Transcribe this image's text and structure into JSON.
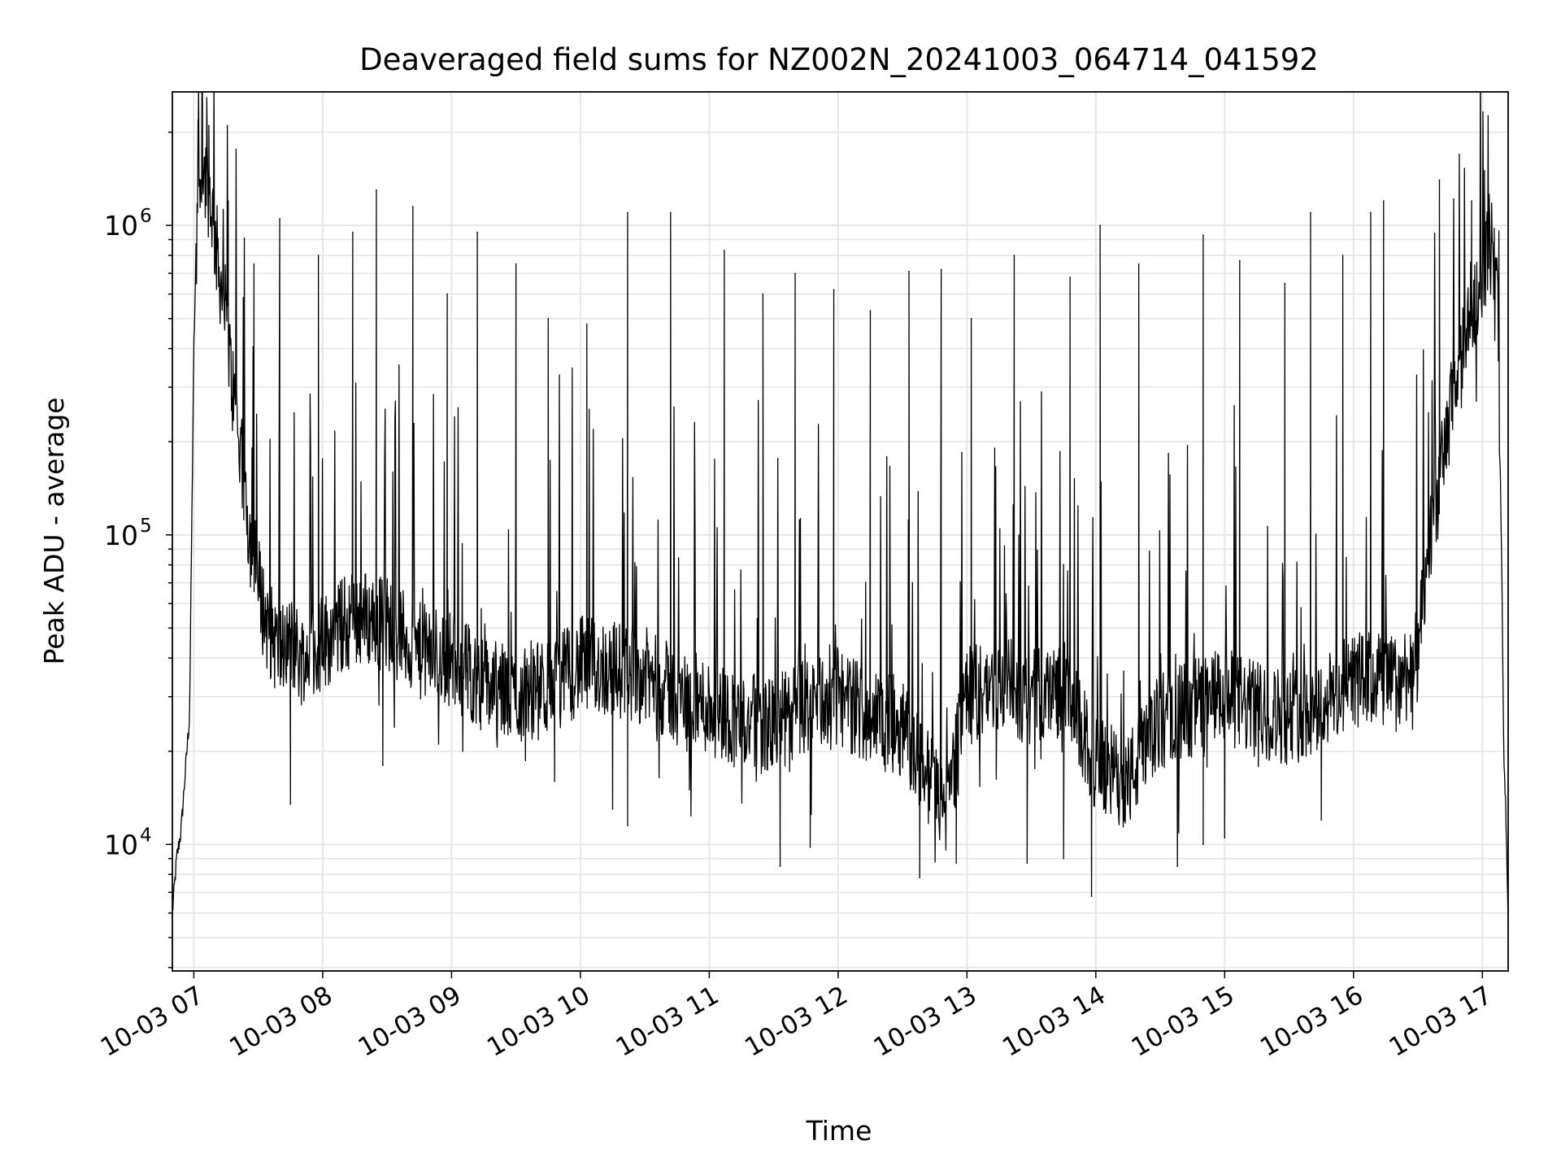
{
  "chart_data": {
    "type": "line",
    "title": "Deaveraged field sums for NZ002N_20241003_064714_041592",
    "xlabel": "Time",
    "ylabel": "Peak ADU - average",
    "x_range": [
      "10-03 06:50",
      "10-03 17:12"
    ],
    "y_scale": "log",
    "ylim": [
      3900,
      2700000
    ],
    "grid": true,
    "line_color": "#000000",
    "grid_color": "#e6e6e6",
    "x_ticks": [
      "10-03 07",
      "10-03 08",
      "10-03 09",
      "10-03 10",
      "10-03 11",
      "10-03 12",
      "10-03 13",
      "10-03 14",
      "10-03 15",
      "10-03 16",
      "10-03 17"
    ],
    "y_ticks": [
      {
        "value": 10000,
        "base": "10",
        "exp": "4"
      },
      {
        "value": 100000,
        "base": "10",
        "exp": "5"
      },
      {
        "value": 1000000,
        "base": "10",
        "exp": "6"
      }
    ],
    "series": [
      {
        "x": [
          "06:50",
          "06:52",
          "06:54",
          "06:56",
          "06:58",
          "07:00",
          "07:02",
          "07:04",
          "07:06",
          "07:08",
          "07:10",
          "07:12",
          "07:15",
          "07:18",
          "07:21",
          "07:24",
          "07:27",
          "07:30",
          "07:33",
          "07:36",
          "07:40",
          "07:45",
          "07:50",
          "08:00",
          "08:15",
          "08:30",
          "08:45",
          "09:00",
          "09:15",
          "09:30",
          "09:45",
          "10:00",
          "10:15",
          "10:30",
          "10:45",
          "11:00",
          "11:15",
          "11:30",
          "11:45",
          "12:00",
          "12:15",
          "12:30",
          "12:45",
          "12:50",
          "13:00",
          "13:15",
          "13:30",
          "13:45",
          "14:00",
          "14:15",
          "14:30",
          "14:45",
          "15:00",
          "15:15",
          "15:30",
          "15:45",
          "16:00",
          "16:10",
          "16:20",
          "16:30",
          "16:35",
          "16:40",
          "16:45",
          "16:50",
          "16:55",
          "17:00",
          "17:03",
          "17:05",
          "17:07",
          "17:09",
          "17:10",
          "17:11",
          "17:12"
        ],
        "y": [
          6000,
          9000,
          11000,
          17000,
          26000,
          400000,
          1400000,
          1500000,
          1400000,
          1200000,
          900000,
          700000,
          500000,
          300000,
          200000,
          130000,
          90000,
          70000,
          55000,
          48000,
          42000,
          45000,
          40000,
          45000,
          55000,
          52000,
          42000,
          40000,
          33000,
          30000,
          32000,
          38000,
          37000,
          35000,
          30000,
          28000,
          25000,
          24000,
          28000,
          30000,
          26000,
          24000,
          15000,
          13000,
          30000,
          33000,
          30000,
          32000,
          18000,
          16000,
          25000,
          28000,
          30000,
          27000,
          26000,
          28000,
          34000,
          34000,
          33000,
          40000,
          90000,
          150000,
          250000,
          350000,
          550000,
          700000,
          900000,
          800000,
          600000,
          80000,
          20000,
          12000,
          5500
        ]
      }
    ],
    "spikes": [
      {
        "x": "07:02",
        "y": 1700000
      },
      {
        "x": "07:07",
        "y": 2100000
      },
      {
        "x": "07:16",
        "y": 1200000
      },
      {
        "x": "07:28",
        "y": 750000
      },
      {
        "x": "07:40",
        "y": 1050000
      },
      {
        "x": "07:58",
        "y": 800000
      },
      {
        "x": "08:14",
        "y": 950000
      },
      {
        "x": "08:25",
        "y": 1300000
      },
      {
        "x": "08:42",
        "y": 1150000
      },
      {
        "x": "08:58",
        "y": 600000
      },
      {
        "x": "09:12",
        "y": 950000
      },
      {
        "x": "09:30",
        "y": 750000
      },
      {
        "x": "09:45",
        "y": 500000
      },
      {
        "x": "10:03",
        "y": 480000
      },
      {
        "x": "10:22",
        "y": 1100000
      },
      {
        "x": "10:42",
        "y": 1100000
      },
      {
        "x": "11:07",
        "y": 830000
      },
      {
        "x": "11:25",
        "y": 600000
      },
      {
        "x": "11:40",
        "y": 700000
      },
      {
        "x": "11:58",
        "y": 620000
      },
      {
        "x": "12:15",
        "y": 530000
      },
      {
        "x": "12:33",
        "y": 710000
      },
      {
        "x": "12:48",
        "y": 720000
      },
      {
        "x": "13:02",
        "y": 500000
      },
      {
        "x": "13:22",
        "y": 800000
      },
      {
        "x": "13:48",
        "y": 680000
      },
      {
        "x": "14:02",
        "y": 1000000
      },
      {
        "x": "14:20",
        "y": 750000
      },
      {
        "x": "14:50",
        "y": 930000
      },
      {
        "x": "15:07",
        "y": 770000
      },
      {
        "x": "15:28",
        "y": 650000
      },
      {
        "x": "15:40",
        "y": 1100000
      },
      {
        "x": "15:55",
        "y": 800000
      },
      {
        "x": "16:08",
        "y": 1100000
      },
      {
        "x": "16:14",
        "y": 1200000
      },
      {
        "x": "16:40",
        "y": 1400000
      },
      {
        "x": "16:55",
        "y": 1200000
      },
      {
        "x": "17:01",
        "y": 1500000
      }
    ],
    "dips": [
      {
        "x": "07:45",
        "y": 13500
      },
      {
        "x": "08:28",
        "y": 18000
      },
      {
        "x": "09:48",
        "y": 16000
      },
      {
        "x": "10:15",
        "y": 13000
      },
      {
        "x": "10:22",
        "y": 11500
      },
      {
        "x": "11:33",
        "y": 8500
      },
      {
        "x": "11:47",
        "y": 9800
      },
      {
        "x": "12:38",
        "y": 7800
      },
      {
        "x": "12:55",
        "y": 8700
      },
      {
        "x": "13:28",
        "y": 8700
      },
      {
        "x": "13:45",
        "y": 9000
      },
      {
        "x": "13:58",
        "y": 6800
      },
      {
        "x": "14:38",
        "y": 8500
      },
      {
        "x": "14:50",
        "y": 10000
      },
      {
        "x": "15:00",
        "y": 10500
      },
      {
        "x": "15:45",
        "y": 12000
      }
    ]
  }
}
